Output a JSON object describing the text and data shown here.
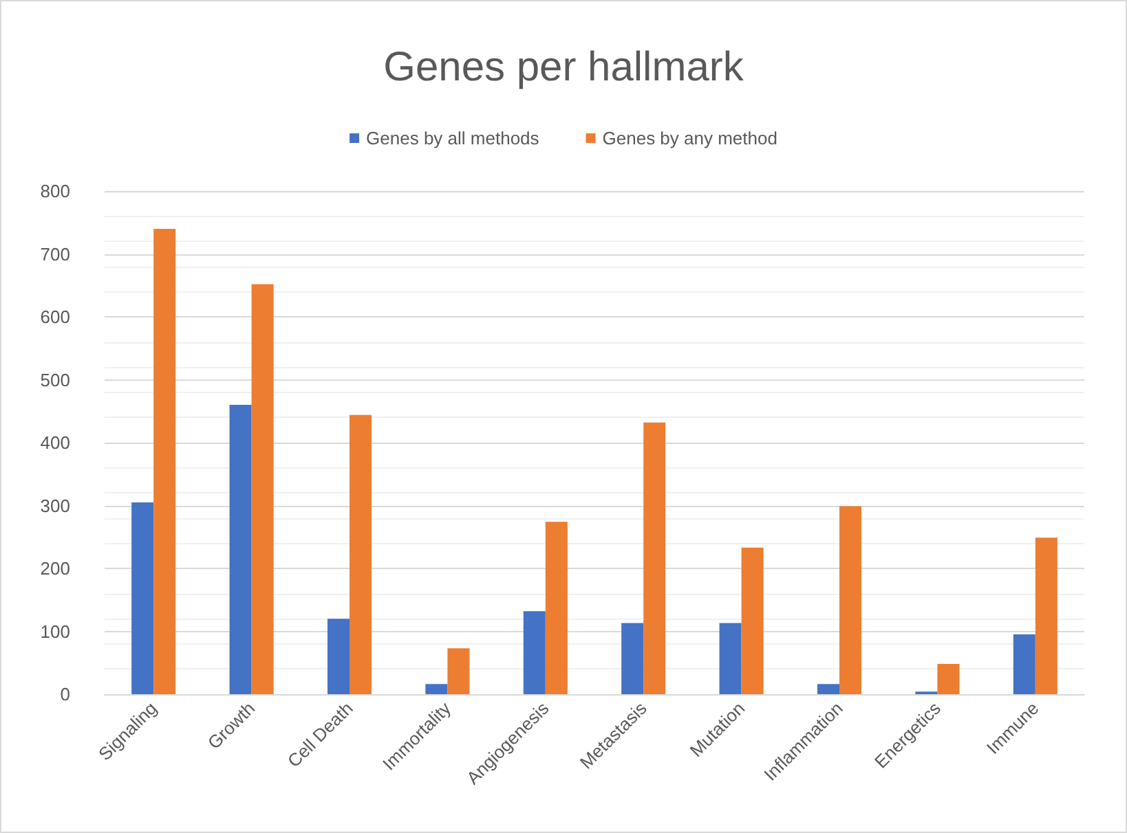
{
  "chart_data": {
    "type": "bar",
    "title": "Genes per hallmark",
    "categories": [
      "Signaling",
      "Growth",
      "Cell Death",
      "Immortality",
      "Angiogenesis",
      "Metastasis",
      "Mutation",
      "Inflammation",
      "Energetics",
      "Immune"
    ],
    "series": [
      {
        "name": "Genes by all methods",
        "color": "#4472c4",
        "values": [
          305,
          460,
          120,
          16,
          132,
          113,
          113,
          16,
          4,
          95
        ]
      },
      {
        "name": "Genes by any method",
        "color": "#ed7d31",
        "values": [
          740,
          652,
          444,
          73,
          274,
          432,
          233,
          299,
          48,
          249
        ]
      }
    ],
    "ylim": [
      0,
      800
    ],
    "yticks": [
      0,
      100,
      200,
      300,
      400,
      500,
      600,
      700,
      800
    ],
    "grid": "y",
    "legend": "top"
  }
}
